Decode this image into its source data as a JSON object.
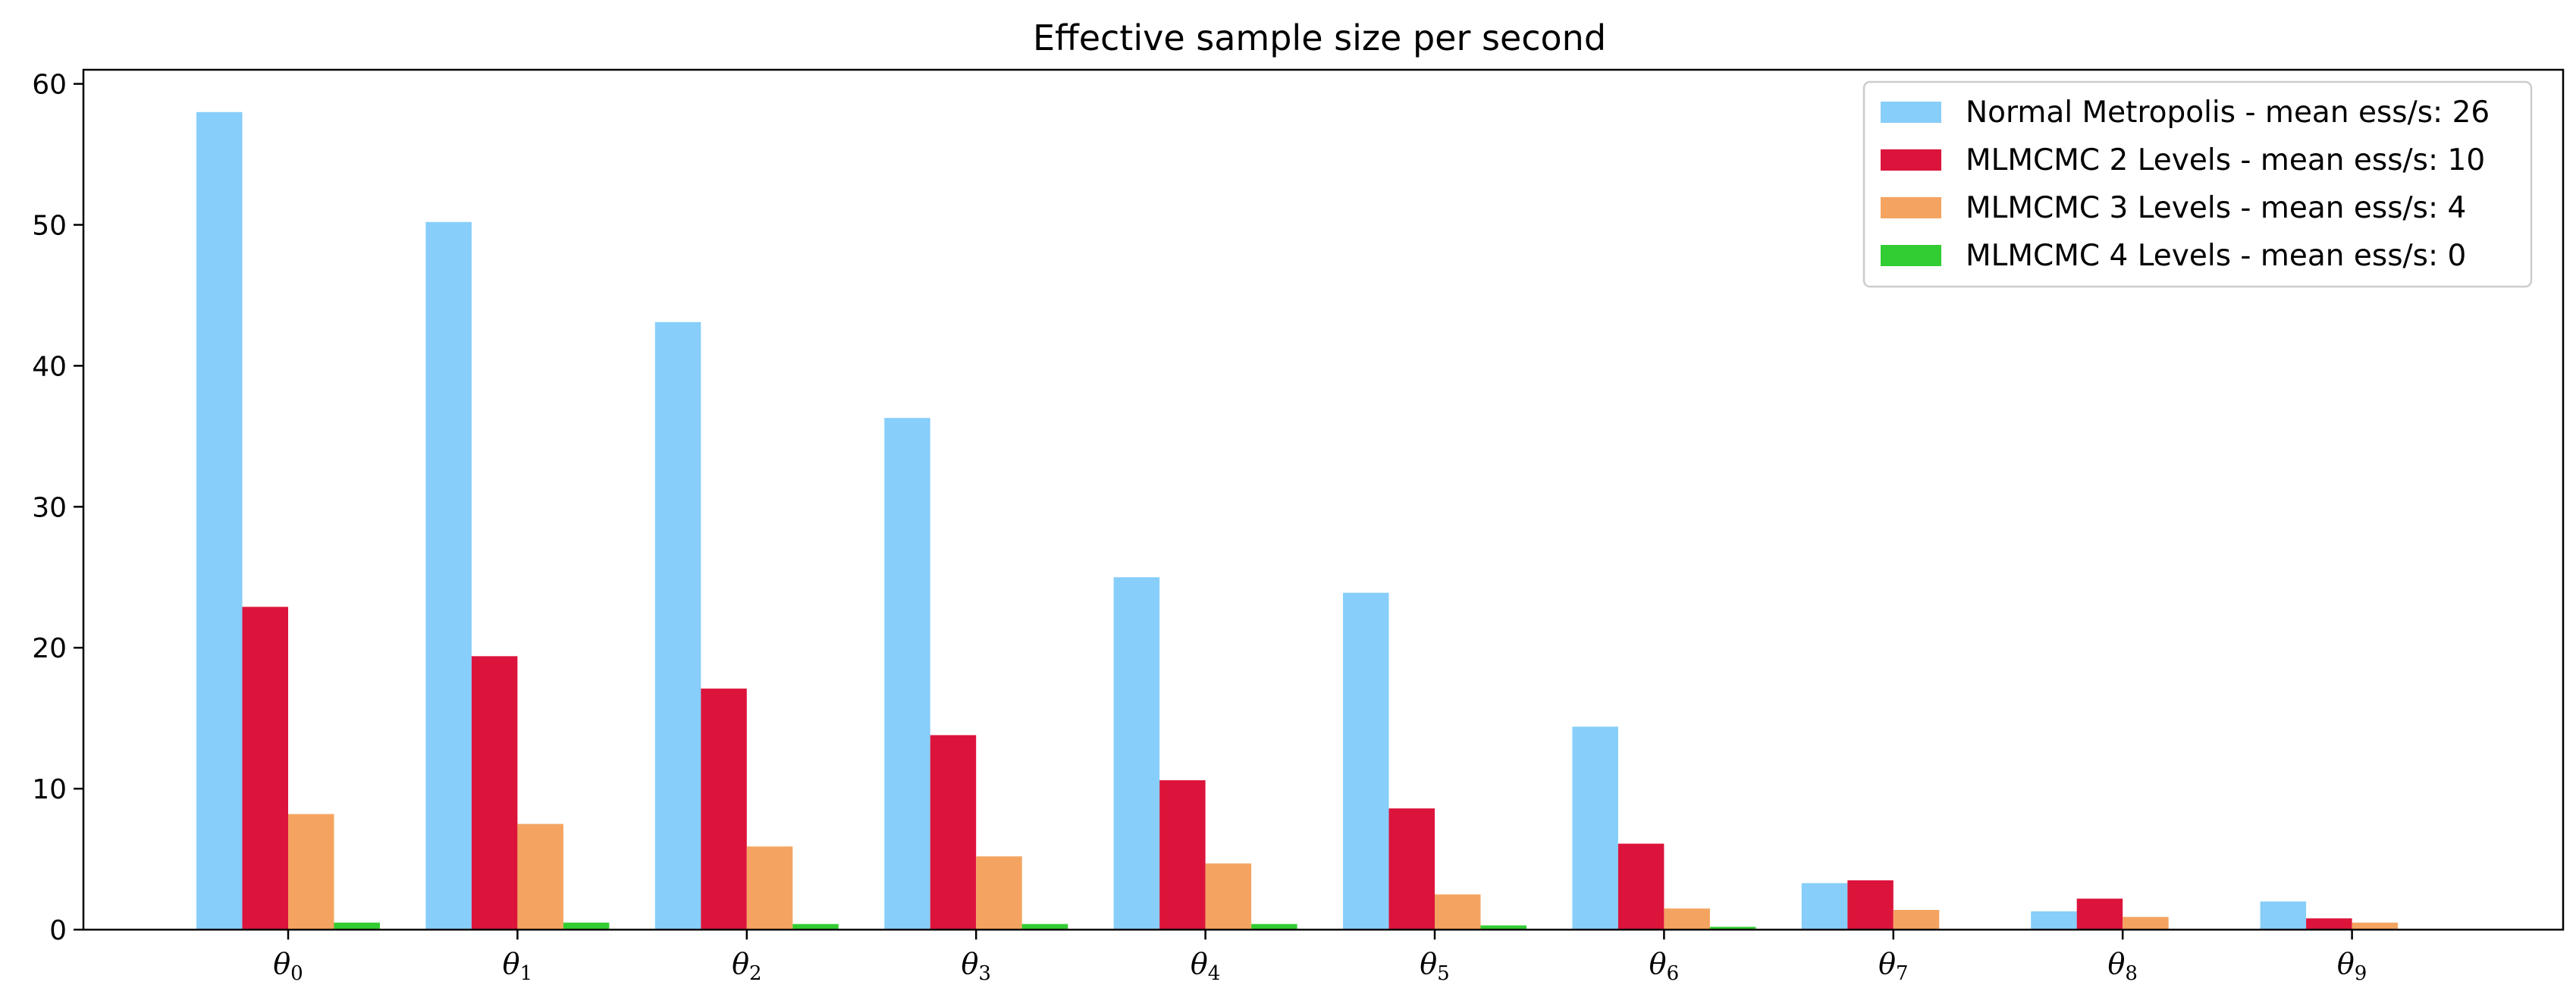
{
  "chart_data": {
    "type": "bar",
    "title": "Effective sample size per second",
    "xlabel": "",
    "ylabel": "",
    "ylim": [
      0,
      61
    ],
    "yticks": [
      0,
      10,
      20,
      30,
      40,
      50,
      60
    ],
    "categories": [
      {
        "base": "θ",
        "sub": "0"
      },
      {
        "base": "θ",
        "sub": "1"
      },
      {
        "base": "θ",
        "sub": "2"
      },
      {
        "base": "θ",
        "sub": "3"
      },
      {
        "base": "θ",
        "sub": "4"
      },
      {
        "base": "θ",
        "sub": "5"
      },
      {
        "base": "θ",
        "sub": "6"
      },
      {
        "base": "θ",
        "sub": "7"
      },
      {
        "base": "θ",
        "sub": "8"
      },
      {
        "base": "θ",
        "sub": "9"
      }
    ],
    "series": [
      {
        "name": "Normal Metropolis - mean ess/s: 26",
        "color": "#87CEFA",
        "values": [
          58.0,
          50.2,
          43.1,
          36.3,
          25.0,
          23.9,
          14.4,
          3.3,
          1.3,
          2.0
        ]
      },
      {
        "name": "MLMCMC 2 Levels - mean ess/s: 10",
        "color": "#DC143C",
        "values": [
          22.9,
          19.4,
          17.1,
          13.8,
          10.6,
          8.6,
          6.1,
          3.5,
          2.2,
          0.8
        ]
      },
      {
        "name": "MLMCMC 3 Levels - mean ess/s: 4",
        "color": "#F4A460",
        "values": [
          8.2,
          7.5,
          5.9,
          5.2,
          4.7,
          2.5,
          1.5,
          1.4,
          0.9,
          0.5
        ]
      },
      {
        "name": "MLMCMC 4 Levels - mean ess/s: 0",
        "color": "#32CD32",
        "values": [
          0.5,
          0.5,
          0.4,
          0.4,
          0.4,
          0.3,
          0.2,
          0.0,
          0.0,
          0.0
        ]
      }
    ],
    "grid": false,
    "legend_position": "top-right"
  }
}
